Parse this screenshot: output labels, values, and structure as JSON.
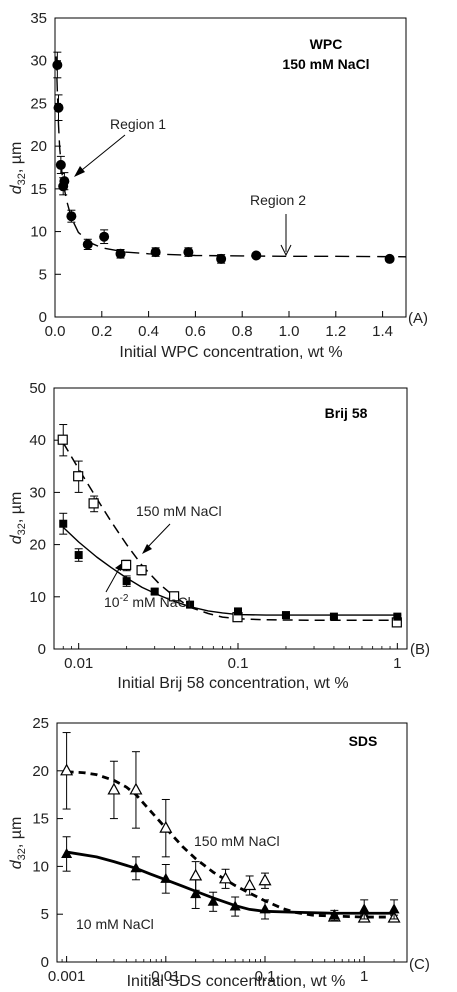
{
  "chart_data": [
    {
      "id": "A",
      "type": "scatter",
      "panel_label": "(A)",
      "scale_x": "linear",
      "xlim": [
        0,
        1.5
      ],
      "ylim": [
        0,
        35
      ],
      "x_ticks": [
        0,
        0.2,
        0.4,
        0.6,
        0.8,
        1.0,
        1.2,
        1.4
      ],
      "x_tick_labels": [
        "0.0",
        "0.2",
        "0.4",
        "0.6",
        "0.8",
        "1.0",
        "1.2",
        "1.4"
      ],
      "y_ticks": [
        0,
        5,
        10,
        15,
        20,
        25,
        30,
        35
      ],
      "y_tick_labels": [
        "0",
        "5",
        "10",
        "15",
        "20",
        "25",
        "30",
        "35"
      ],
      "xlabel": "Initial WPC concentration, wt %",
      "ylabel": "d32, µm",
      "ylabel_main": "d",
      "ylabel_sub": "32",
      "ylabel_rest": ", µm",
      "title_lines": [
        "WPC",
        "150 mM NaCl"
      ],
      "annotations": [
        {
          "text": "Region 1",
          "x": 0.05,
          "y": 16.5
        },
        {
          "text": "Region 2",
          "x": 0.98,
          "y": 8.0
        }
      ],
      "series": [
        {
          "marker": "filled-circle",
          "x": [
            0.01,
            0.015,
            0.025,
            0.035,
            0.04,
            0.07,
            0.14,
            0.21,
            0.28,
            0.43,
            0.57,
            0.71,
            0.86,
            1.43
          ],
          "y": [
            29.5,
            24.5,
            17.8,
            15.3,
            15.9,
            11.8,
            8.5,
            9.4,
            7.4,
            7.6,
            7.6,
            6.8,
            7.2,
            6.8
          ],
          "err": [
            1.5,
            1.5,
            1.0,
            1.0,
            1.0,
            0.7,
            0.6,
            0.8,
            0.5,
            0.5,
            0.5,
            0.5,
            0.3,
            0.3
          ],
          "fit": {
            "style": "long-dash",
            "x": [
              0.005,
              0.01,
              0.015,
              0.02,
              0.03,
              0.04,
              0.05,
              0.07,
              0.1,
              0.15,
              0.2,
              0.3,
              0.4,
              0.6,
              0.8,
              1.0,
              1.2,
              1.5
            ],
            "y": [
              30.5,
              26.5,
              22.5,
              19.8,
              16.8,
              15.0,
              13.6,
              11.6,
              9.9,
              8.7,
              8.1,
              7.6,
              7.4,
              7.2,
              7.15,
              7.1,
              7.1,
              7.05
            ]
          }
        }
      ]
    },
    {
      "id": "B",
      "type": "scatter",
      "panel_label": "(B)",
      "scale_x": "log",
      "xlim": [
        0.007,
        1.15
      ],
      "ylim": [
        0,
        50
      ],
      "x_ticks": [
        0.01,
        0.1,
        1
      ],
      "x_tick_labels": [
        "0.01",
        "0.1",
        "1"
      ],
      "y_ticks": [
        0,
        10,
        20,
        30,
        40,
        50
      ],
      "y_tick_labels": [
        "0",
        "10",
        "20",
        "30",
        "40",
        "50"
      ],
      "xlabel": "Initial Brij 58 concentration, wt %",
      "ylabel": "d32, µm",
      "ylabel_main": "d",
      "ylabel_sub": "32",
      "ylabel_rest": ", µm",
      "title_lines": [
        "Brij 58"
      ],
      "annotations": [
        {
          "text": "150 mM NaCl",
          "x": 0.0115,
          "y": 25.5
        },
        {
          "text_main": "10",
          "text_sup": "-2",
          "text_rest": " mM NaCl",
          "x": 0.0105,
          "y": 5.5
        }
      ],
      "series": [
        {
          "name": "150 mM NaCl",
          "marker": "open-square",
          "x": [
            0.008,
            0.01,
            0.0125,
            0.02,
            0.025,
            0.04,
            0.1,
            1.0
          ],
          "y": [
            40,
            33,
            27.8,
            16,
            15,
            10,
            6,
            5
          ],
          "err": [
            3,
            3,
            1.5,
            1,
            0.8,
            0.6,
            0.5,
            0.5
          ],
          "fit": {
            "style": "dash",
            "x": [
              0.008,
              0.01,
              0.013,
              0.016,
              0.02,
              0.025,
              0.032,
              0.04,
              0.05,
              0.065,
              0.08,
              0.1,
              0.15,
              0.3,
              0.6,
              1.0
            ],
            "y": [
              39.5,
              34.5,
              28.8,
              24.4,
              20.0,
              16.0,
              12.5,
              10.0,
              8.0,
              6.8,
              6.1,
              5.8,
              5.6,
              5.5,
              5.5,
              5.5
            ]
          }
        },
        {
          "name": "10-2 mM NaCl",
          "marker": "filled-square",
          "x": [
            0.008,
            0.01,
            0.02,
            0.03,
            0.05,
            0.1,
            0.2,
            0.4,
            1.0
          ],
          "y": [
            24,
            18,
            13,
            11,
            8.5,
            7.2,
            6.5,
            6.2,
            6.2
          ],
          "err": [
            2,
            1.2,
            1,
            0.5,
            0.5,
            0.4,
            0.3,
            0.3,
            0.3
          ],
          "fit": {
            "style": "solid",
            "x": [
              0.008,
              0.01,
              0.013,
              0.016,
              0.02,
              0.025,
              0.032,
              0.04,
              0.05,
              0.065,
              0.08,
              0.1,
              0.15,
              0.3,
              0.6,
              1.0
            ],
            "y": [
              23.3,
              20.5,
              17.6,
              15.6,
              13.6,
              11.8,
              10.3,
              9.1,
              8.1,
              7.3,
              6.9,
              6.6,
              6.5,
              6.5,
              6.5,
              6.5
            ]
          }
        }
      ]
    },
    {
      "id": "C",
      "type": "scatter",
      "panel_label": "(C)",
      "scale_x": "log",
      "xlim": [
        0.0008,
        2.7
      ],
      "ylim": [
        0,
        25
      ],
      "x_ticks": [
        0.001,
        0.01,
        0.1,
        1
      ],
      "x_tick_labels": [
        "0.001",
        "0.01",
        "0.1",
        "1"
      ],
      "y_ticks": [
        0,
        5,
        10,
        15,
        20,
        25
      ],
      "y_tick_labels": [
        "0",
        "5",
        "10",
        "15",
        "20",
        "25"
      ],
      "xlabel": "Initial SDS concentration, wt %",
      "ylabel": "d32, µm",
      "ylabel_main": "d",
      "ylabel_sub": "32",
      "ylabel_rest": ", µm",
      "title_lines": [
        "SDS"
      ],
      "annotations": [
        {
          "text": "150 mM NaCl",
          "x": 0.0115,
          "y": 12.5
        },
        {
          "text": "10 mM NaCl",
          "x": 0.0011,
          "y": 4.0
        }
      ],
      "series": [
        {
          "name": "150 mM NaCl",
          "marker": "open-triangle",
          "x": [
            0.001,
            0.003,
            0.005,
            0.01,
            0.02,
            0.04,
            0.07,
            0.1,
            0.5,
            1.0,
            2.0
          ],
          "y": [
            20,
            18,
            18,
            14,
            9,
            8.7,
            8,
            8.5,
            4.7,
            4.6,
            4.6
          ],
          "err": [
            4,
            3,
            4,
            3,
            1.5,
            1,
            1,
            0.8,
            0.3,
            0.3,
            0.3
          ],
          "fit": {
            "style": "short-dash",
            "x": [
              0.001,
              0.0015,
              0.002,
              0.003,
              0.004,
              0.005,
              0.007,
              0.01,
              0.015,
              0.02,
              0.03,
              0.05,
              0.07,
              0.1,
              0.15,
              0.2,
              0.3,
              0.5,
              1.0,
              2.0
            ],
            "y": [
              19.9,
              19.8,
              19.6,
              19.0,
              18.3,
              17.5,
              15.8,
              14.0,
              12.0,
              10.8,
              9.4,
              8.0,
              7.2,
              6.4,
              5.6,
              5.2,
              4.9,
              4.8,
              4.7,
              4.7
            ]
          }
        },
        {
          "name": "10 mM NaCl",
          "marker": "filled-triangle",
          "x": [
            0.001,
            0.005,
            0.01,
            0.02,
            0.03,
            0.05,
            0.1,
            0.5,
            1.0,
            2.0
          ],
          "y": [
            11.3,
            9.8,
            8.7,
            7.1,
            6.3,
            5.8,
            5.5,
            4.9,
            5.5,
            5.5
          ],
          "err": [
            1.8,
            1.2,
            1.5,
            1.5,
            1,
            1,
            1,
            0.5,
            1,
            1
          ],
          "fit": {
            "style": "solid-thick",
            "x": [
              0.001,
              0.002,
              0.003,
              0.005,
              0.007,
              0.01,
              0.015,
              0.02,
              0.03,
              0.05,
              0.07,
              0.1,
              0.2,
              0.5,
              1.0,
              2.0
            ],
            "y": [
              11.5,
              11.0,
              10.5,
              9.8,
              9.2,
              8.6,
              7.9,
              7.4,
              6.7,
              5.9,
              5.5,
              5.3,
              5.2,
              5.1,
              5.1,
              5.1
            ]
          }
        }
      ]
    }
  ]
}
